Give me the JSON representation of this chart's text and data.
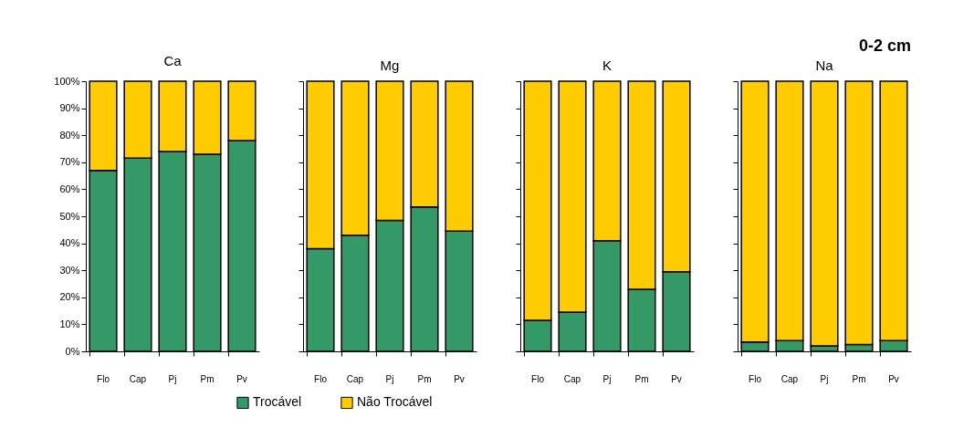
{
  "chart_data": [
    {
      "type": "bar",
      "stacked": true,
      "title": "Ca",
      "annotations": [
        "0-2 cm"
      ],
      "legend": "bottom",
      "categories": [
        "Flo",
        "Cap",
        "Pj",
        "Pm",
        "Pv"
      ],
      "ylim": [
        0,
        100
      ],
      "yticks": [
        {
          "value": 0,
          "label": "0%"
        },
        {
          "value": 10,
          "label": "10%"
        },
        {
          "value": 20,
          "label": "20%"
        },
        {
          "value": 30,
          "label": "30%"
        },
        {
          "value": 40,
          "label": "40%"
        },
        {
          "value": 50,
          "label": "50%"
        },
        {
          "value": 60,
          "label": "60%"
        },
        {
          "value": 70,
          "label": "70%"
        },
        {
          "value": 80,
          "label": "80%"
        },
        {
          "value": 90,
          "label": "90%"
        },
        {
          "value": 100,
          "label": "100%"
        }
      ],
      "series": [
        {
          "name": "Trocável",
          "color": "#339966",
          "values": [
            67,
            71.5,
            74,
            73,
            78
          ]
        },
        {
          "name": "Não Trocável",
          "color": "#ffcc00",
          "values": [
            33,
            28.5,
            26,
            27,
            22
          ]
        }
      ]
    },
    {
      "type": "bar",
      "stacked": true,
      "title": "Mg",
      "tick_labels": "x",
      "categories": [
        "Flo",
        "Cap",
        "Pj",
        "Pm",
        "Pv"
      ],
      "ylim": [
        0,
        100
      ],
      "series": [
        {
          "color": "#339966",
          "values": [
            38,
            43,
            48.5,
            53.5,
            44.5
          ]
        },
        {
          "color": "#ffcc00",
          "values": [
            62,
            57,
            51.5,
            46.5,
            55.5
          ]
        }
      ]
    },
    {
      "type": "bar",
      "stacked": true,
      "title": "K",
      "tick_labels": "x",
      "categories": [
        "Flo",
        "Cap",
        "Pj",
        "Pm",
        "Pv"
      ],
      "ylim": [
        0,
        100
      ],
      "series": [
        {
          "color": "#339966",
          "values": [
            11.5,
            14.5,
            41,
            23,
            29.5
          ]
        },
        {
          "color": "#ffcc00",
          "values": [
            88.5,
            85.5,
            59,
            77,
            70.5
          ]
        }
      ]
    },
    {
      "type": "bar",
      "stacked": true,
      "title": "Na",
      "tick_labels": "x",
      "categories": [
        "Flo",
        "Cap",
        "Pj",
        "Pm",
        "Pv"
      ],
      "ylim": [
        0,
        100
      ],
      "series": [
        {
          "color": "#339966",
          "values": [
            3.5,
            4,
            2,
            2.5,
            4
          ]
        },
        {
          "color": "#ffcc00",
          "values": [
            96.5,
            96,
            98,
            97.5,
            96
          ]
        }
      ]
    }
  ]
}
